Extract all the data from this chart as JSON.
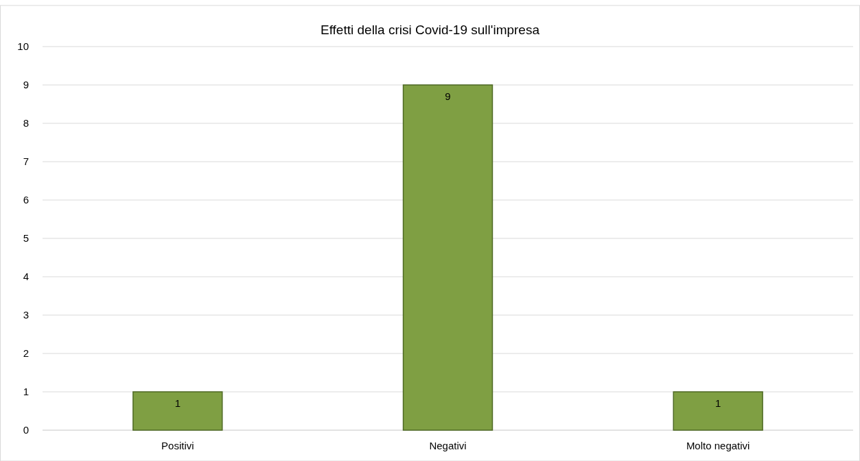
{
  "chart_data": {
    "type": "bar",
    "title": "Effetti della crisi Covid-19 sull'impresa",
    "categories": [
      "Positivi",
      "Negativi",
      "Molto negativi"
    ],
    "values": [
      1,
      9,
      1
    ],
    "color": "#7f9f43",
    "ylim": [
      0,
      10
    ],
    "yticks": [
      0,
      1,
      2,
      3,
      4,
      5,
      6,
      7,
      8,
      9,
      10
    ],
    "grid": "y",
    "data_labels": true
  }
}
